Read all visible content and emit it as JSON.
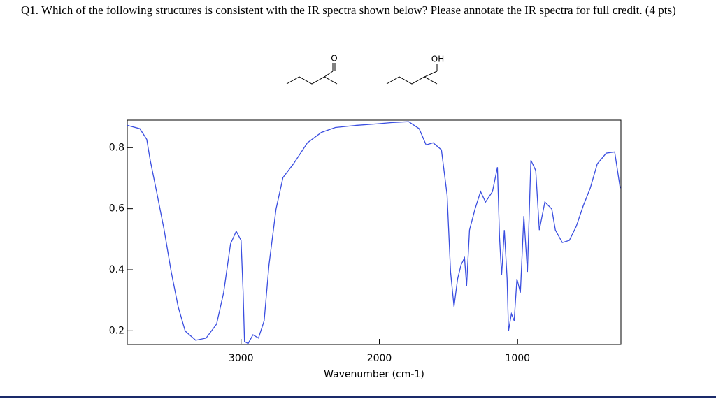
{
  "question": {
    "text": "Q1. Which of the following structures is consistent with the IR spectra shown below? Please annotate the IR spectra for full credit. (4 pts)"
  },
  "structures": [
    {
      "label": "O"
    },
    {
      "label": "OH"
    }
  ],
  "chart_data": {
    "type": "line",
    "x_label": "Wavenumber (cm-1)",
    "x": [
      3823,
      3732,
      3682,
      3657,
      3606,
      3556,
      3505,
      3455,
      3404,
      3328,
      3253,
      3177,
      3126,
      3076,
      3035,
      3000,
      2985,
      2975,
      2949,
      2914,
      2874,
      2833,
      2798,
      2747,
      2697,
      2621,
      2520,
      2419,
      2318,
      2167,
      2015,
      1914,
      1788,
      1712,
      1662,
      1611,
      1551,
      1510,
      1485,
      1460,
      1434,
      1409,
      1384,
      1369,
      1348,
      1308,
      1268,
      1232,
      1182,
      1146,
      1131,
      1116,
      1096,
      1076,
      1066,
      1045,
      1025,
      1005,
      980,
      955,
      929,
      904,
      869,
      843,
      803,
      753,
      727,
      677,
      626,
      576,
      525,
      475,
      424,
      359,
      298,
      258
    ],
    "series": [
      {
        "color": "#3a4ee0",
        "values": [
          0.873,
          0.862,
          0.827,
          0.759,
          0.645,
          0.53,
          0.393,
          0.279,
          0.199,
          0.169,
          0.176,
          0.222,
          0.325,
          0.485,
          0.526,
          0.496,
          0.325,
          0.165,
          0.158,
          0.187,
          0.176,
          0.233,
          0.416,
          0.599,
          0.702,
          0.747,
          0.816,
          0.85,
          0.866,
          0.873,
          0.878,
          0.882,
          0.885,
          0.862,
          0.809,
          0.816,
          0.793,
          0.645,
          0.393,
          0.279,
          0.37,
          0.416,
          0.439,
          0.347,
          0.53,
          0.599,
          0.656,
          0.622,
          0.656,
          0.736,
          0.507,
          0.382,
          0.53,
          0.37,
          0.199,
          0.256,
          0.233,
          0.37,
          0.325,
          0.576,
          0.393,
          0.759,
          0.725,
          0.53,
          0.622,
          0.599,
          0.53,
          0.489,
          0.496,
          0.542,
          0.61,
          0.667,
          0.747,
          0.782,
          0.786,
          0.667
        ]
      }
    ],
    "xlim": [
      3823,
      253
    ],
    "ylim": [
      0.155,
      0.89
    ],
    "xticks": [
      3000,
      2000,
      1000
    ],
    "yticks": [
      0.2,
      0.4,
      0.6,
      0.8
    ]
  }
}
